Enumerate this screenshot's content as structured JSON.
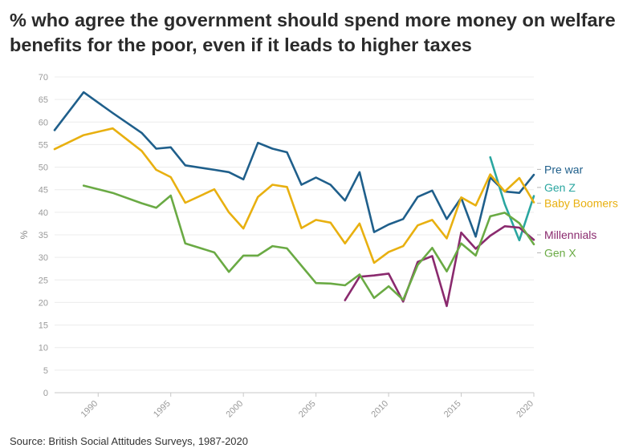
{
  "title": "% who agree the government should spend more money on welfare benefits for the poor, even if it leads to higher taxes",
  "source": "Source: British Social Attitudes Surveys, 1987-2020",
  "chart_data": {
    "type": "line",
    "title": "% who agree the government should spend more money on welfare benefits for the poor, even if it leads to higher taxes",
    "ylabel": "%",
    "xlabel": "",
    "ylim": [
      0,
      70
    ],
    "xlim": [
      1987,
      2020
    ],
    "yticks": [
      "0",
      "5",
      "10",
      "15",
      "20",
      "25",
      "30",
      "35",
      "40",
      "45",
      "50",
      "55",
      "60",
      "65",
      "70"
    ],
    "xticks": [
      "1990",
      "1995",
      "2000",
      "2005",
      "2010",
      "2015",
      "2020"
    ],
    "grid": true,
    "legend": "right, labels at line ends",
    "series": [
      {
        "name": "Pre war",
        "color": "#1f5f8b",
        "points": [
          [
            1987,
            58.2
          ],
          [
            1989,
            66.6
          ],
          [
            1991,
            62.0
          ],
          [
            1993,
            57.6
          ],
          [
            1994,
            54.1
          ],
          [
            1995,
            54.4
          ],
          [
            1996,
            50.4
          ],
          [
            1998,
            49.4
          ],
          [
            1999,
            48.9
          ],
          [
            2000,
            47.3
          ],
          [
            2001,
            55.4
          ],
          [
            2002,
            54.1
          ],
          [
            2003,
            53.3
          ],
          [
            2004,
            46.1
          ],
          [
            2005,
            47.7
          ],
          [
            2006,
            46.1
          ],
          [
            2007,
            42.6
          ],
          [
            2008,
            48.9
          ],
          [
            2009,
            35.6
          ],
          [
            2010,
            37.3
          ],
          [
            2011,
            38.5
          ],
          [
            2012,
            43.4
          ],
          [
            2013,
            44.8
          ],
          [
            2014,
            38.5
          ],
          [
            2015,
            43.2
          ],
          [
            2016,
            34.6
          ],
          [
            2017,
            47.7
          ],
          [
            2018,
            44.6
          ],
          [
            2019,
            44.3
          ],
          [
            2020,
            48.3
          ]
        ]
      },
      {
        "name": "Gen Z",
        "color": "#2aa6a0",
        "points": [
          [
            2017,
            52.2
          ],
          [
            2018,
            41.8
          ],
          [
            2019,
            33.8
          ],
          [
            2020,
            43.6
          ]
        ]
      },
      {
        "name": "Baby Boomers",
        "color": "#e8b010",
        "points": [
          [
            1987,
            54.0
          ],
          [
            1989,
            57.1
          ],
          [
            1991,
            58.6
          ],
          [
            1993,
            53.6
          ],
          [
            1994,
            49.4
          ],
          [
            1995,
            47.8
          ],
          [
            1996,
            42.1
          ],
          [
            1998,
            45.1
          ],
          [
            1999,
            40.0
          ],
          [
            2000,
            36.4
          ],
          [
            2001,
            43.4
          ],
          [
            2002,
            46.1
          ],
          [
            2003,
            45.6
          ],
          [
            2004,
            36.5
          ],
          [
            2005,
            38.3
          ],
          [
            2006,
            37.7
          ],
          [
            2007,
            33.1
          ],
          [
            2008,
            37.5
          ],
          [
            2009,
            28.8
          ],
          [
            2010,
            31.2
          ],
          [
            2011,
            32.5
          ],
          [
            2012,
            37.1
          ],
          [
            2013,
            38.3
          ],
          [
            2014,
            34.2
          ],
          [
            2015,
            43.3
          ],
          [
            2016,
            41.5
          ],
          [
            2017,
            48.4
          ],
          [
            2018,
            44.6
          ],
          [
            2019,
            47.6
          ],
          [
            2020,
            42.2
          ]
        ]
      },
      {
        "name": "Millennials",
        "color": "#8a2a6e",
        "points": [
          [
            2007,
            20.5
          ],
          [
            2008,
            25.7
          ],
          [
            2009,
            26.0
          ],
          [
            2010,
            26.4
          ],
          [
            2011,
            20.2
          ],
          [
            2012,
            29.0
          ],
          [
            2013,
            30.3
          ],
          [
            2014,
            19.2
          ],
          [
            2015,
            35.5
          ],
          [
            2016,
            31.9
          ],
          [
            2017,
            34.8
          ],
          [
            2018,
            36.9
          ],
          [
            2019,
            36.6
          ],
          [
            2020,
            33.9
          ]
        ]
      },
      {
        "name": "Gen X",
        "color": "#6aaa44",
        "points": [
          [
            1989,
            45.9
          ],
          [
            1991,
            44.3
          ],
          [
            1993,
            42.0
          ],
          [
            1994,
            41.0
          ],
          [
            1995,
            43.7
          ],
          [
            1996,
            33.1
          ],
          [
            1998,
            31.1
          ],
          [
            1999,
            26.8
          ],
          [
            2000,
            30.4
          ],
          [
            2001,
            30.4
          ],
          [
            2002,
            32.5
          ],
          [
            2003,
            32.0
          ],
          [
            2005,
            24.3
          ],
          [
            2006,
            24.2
          ],
          [
            2007,
            23.8
          ],
          [
            2008,
            26.2
          ],
          [
            2009,
            21.0
          ],
          [
            2010,
            23.6
          ],
          [
            2011,
            20.6
          ],
          [
            2012,
            28.3
          ],
          [
            2013,
            32.1
          ],
          [
            2014,
            26.9
          ],
          [
            2015,
            33.1
          ],
          [
            2016,
            30.4
          ],
          [
            2017,
            39.1
          ],
          [
            2018,
            39.9
          ],
          [
            2019,
            37.6
          ],
          [
            2020,
            32.9
          ]
        ]
      }
    ],
    "labels": [
      {
        "text": "Pre war",
        "color": "#1f5f8b",
        "y": 49.5
      },
      {
        "text": "Gen Z",
        "color": "#2aa6a0",
        "y": 45.5
      },
      {
        "text": "Baby Boomers",
        "color": "#e8b010",
        "y": 42.0
      },
      {
        "text": "Millennials",
        "color": "#8a2a6e",
        "y": 35.0
      },
      {
        "text": "Gen X",
        "color": "#6aaa44",
        "y": 31.0
      }
    ]
  }
}
